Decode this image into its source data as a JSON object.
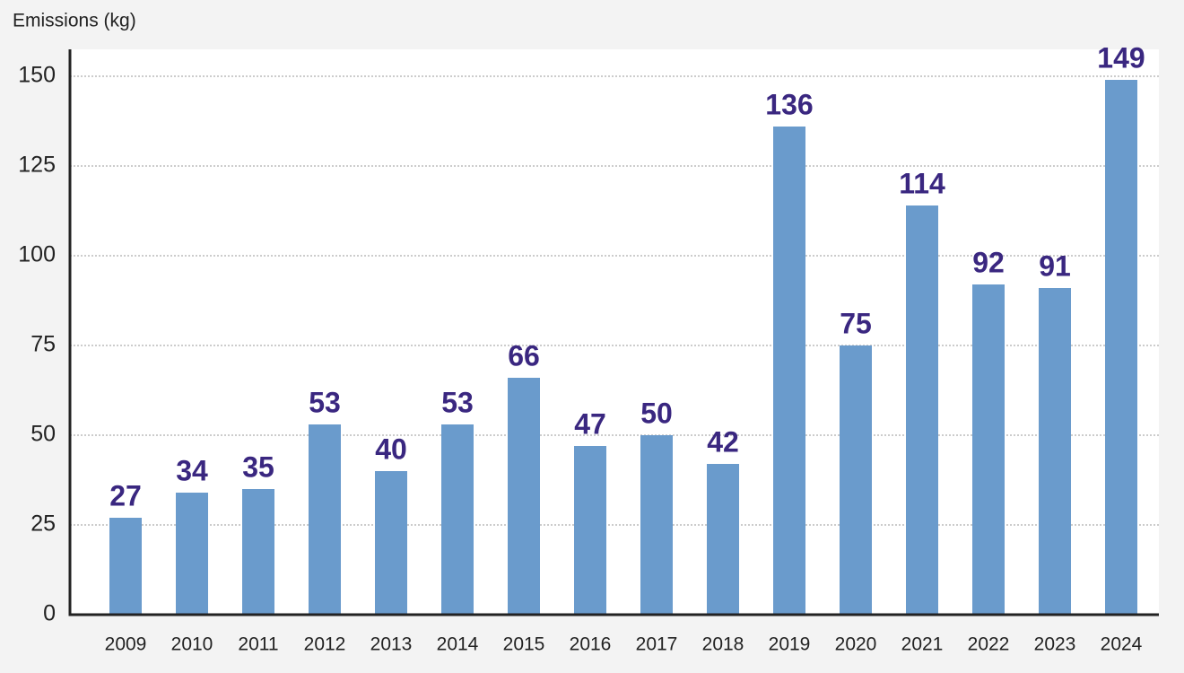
{
  "chart_data": {
    "type": "bar",
    "y_label": "Emissions (kg)",
    "categories": [
      "2009",
      "2010",
      "2011",
      "2012",
      "2013",
      "2014",
      "2015",
      "2016",
      "2017",
      "2018",
      "2019",
      "2020",
      "2021",
      "2022",
      "2023",
      "2024"
    ],
    "values": [
      27,
      34,
      35,
      53,
      40,
      53,
      66,
      47,
      50,
      42,
      136,
      75,
      114,
      92,
      91,
      149
    ],
    "color": "#6a9bcc",
    "label_color": "#3a2780",
    "ylim": [
      0,
      157.5
    ],
    "yticks": [
      0,
      25,
      50,
      75,
      100,
      125,
      150
    ],
    "grid": true
  }
}
